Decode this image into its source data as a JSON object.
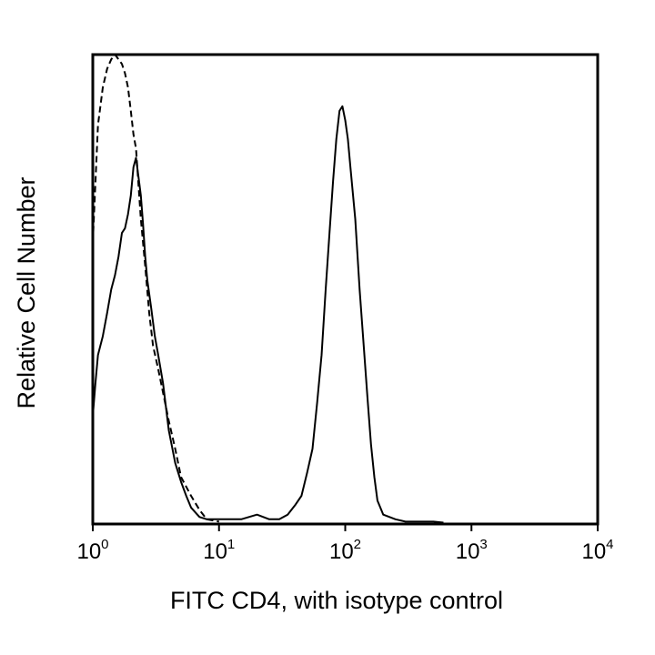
{
  "chart_data": {
    "type": "line",
    "title": "",
    "xlabel": "FITC CD4, with isotype control",
    "ylabel": "Relative Cell Number",
    "x_scale": "log",
    "xlim": [
      1,
      10000
    ],
    "ylim": [
      0,
      100
    ],
    "y_ticks_shown": false,
    "grid": false,
    "legend": "none",
    "x_ticks": [
      {
        "base": "10",
        "exp": "0",
        "value": 1
      },
      {
        "base": "10",
        "exp": "1",
        "value": 10
      },
      {
        "base": "10",
        "exp": "2",
        "value": 100
      },
      {
        "base": "10",
        "exp": "3",
        "value": 1000
      },
      {
        "base": "10",
        "exp": "4",
        "value": 10000
      }
    ],
    "series": [
      {
        "style": "dashed",
        "color": "#000000",
        "points": [
          [
            1.0,
            60
          ],
          [
            1.1,
            85
          ],
          [
            1.2,
            93
          ],
          [
            1.3,
            97
          ],
          [
            1.4,
            99
          ],
          [
            1.5,
            100
          ],
          [
            1.6,
            99
          ],
          [
            1.7,
            98
          ],
          [
            1.8,
            96
          ],
          [
            1.9,
            93
          ],
          [
            2.0,
            88
          ],
          [
            2.1,
            83
          ],
          [
            2.2,
            80
          ],
          [
            2.4,
            65
          ],
          [
            2.6,
            55
          ],
          [
            2.8,
            45
          ],
          [
            3.0,
            38
          ],
          [
            3.3,
            33
          ],
          [
            3.6,
            28
          ],
          [
            4.0,
            22
          ],
          [
            4.5,
            16
          ],
          [
            5.0,
            10
          ],
          [
            6.0,
            6
          ],
          [
            7.0,
            3
          ],
          [
            8.0,
            1
          ],
          [
            10,
            0.5
          ]
        ]
      },
      {
        "style": "solid",
        "color": "#000000",
        "points": [
          [
            1.0,
            23
          ],
          [
            1.05,
            30
          ],
          [
            1.1,
            36
          ],
          [
            1.2,
            40
          ],
          [
            1.3,
            45
          ],
          [
            1.4,
            50
          ],
          [
            1.5,
            53
          ],
          [
            1.6,
            57
          ],
          [
            1.7,
            62
          ],
          [
            1.8,
            63
          ],
          [
            1.9,
            66
          ],
          [
            2.0,
            70
          ],
          [
            2.1,
            76
          ],
          [
            2.2,
            78
          ],
          [
            2.3,
            74
          ],
          [
            2.4,
            70
          ],
          [
            2.5,
            64
          ],
          [
            2.6,
            57
          ],
          [
            2.7,
            52
          ],
          [
            2.9,
            46
          ],
          [
            3.1,
            40
          ],
          [
            3.3,
            36
          ],
          [
            3.6,
            30
          ],
          [
            4.0,
            20
          ],
          [
            4.5,
            13
          ],
          [
            5.0,
            9
          ],
          [
            5.5,
            6
          ],
          [
            6.0,
            3.5
          ],
          [
            7.0,
            1.5
          ],
          [
            8.0,
            1
          ],
          [
            10,
            1
          ],
          [
            15,
            1
          ],
          [
            20,
            2
          ],
          [
            25,
            1
          ],
          [
            30,
            1
          ],
          [
            35,
            2
          ],
          [
            40,
            4
          ],
          [
            45,
            6
          ],
          [
            50,
            11
          ],
          [
            55,
            16
          ],
          [
            60,
            26
          ],
          [
            65,
            36
          ],
          [
            70,
            50
          ],
          [
            75,
            62
          ],
          [
            80,
            73
          ],
          [
            85,
            82
          ],
          [
            90,
            88
          ],
          [
            95,
            89
          ],
          [
            100,
            86
          ],
          [
            105,
            82
          ],
          [
            110,
            76
          ],
          [
            120,
            65
          ],
          [
            130,
            50
          ],
          [
            140,
            38
          ],
          [
            150,
            27
          ],
          [
            160,
            17
          ],
          [
            170,
            10
          ],
          [
            180,
            5
          ],
          [
            200,
            2
          ],
          [
            250,
            1
          ],
          [
            300,
            0.5
          ],
          [
            400,
            0.5
          ],
          [
            500,
            0.5
          ],
          [
            600,
            0.3
          ]
        ]
      }
    ]
  }
}
